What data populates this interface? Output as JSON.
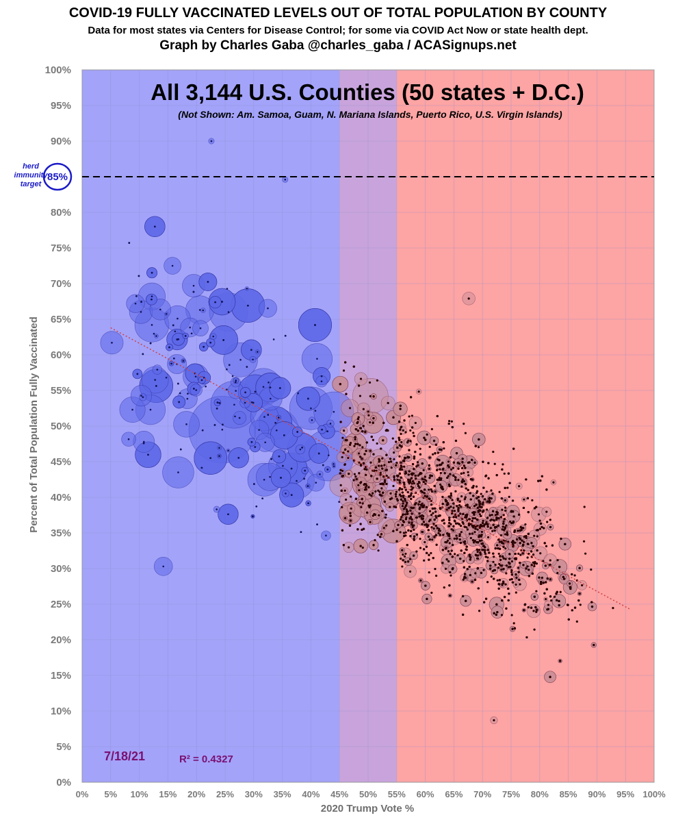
{
  "header": {
    "title": "COVID-19 FULLY VACCINATED LEVELS OUT OF TOTAL POPULATION BY COUNTY",
    "subtitle": "Data for most states via Centers for Disease Control; for some via COVID Act Now or state health dept.",
    "credit": "Graph by Charles Gaba @charles_gaba / ACASignups.net"
  },
  "colors": {
    "blue_zone": "#a3a3fa",
    "purple_zone": "#c9a4dc",
    "red_zone": "#fda4a4",
    "blue_marker": "#5c67e8",
    "red_marker": "#c78c95",
    "dot": "#2a0000",
    "trend": "#d04040",
    "herd_line": "#000000",
    "annotation": "#7a1070"
  },
  "chart_data": {
    "type": "scatter",
    "heading": "All 3,144 U.S. Counties (50 states + D.C.)",
    "note": "(Not Shown: Am. Samoa, Guam, N. Mariana Islands, Puerto Rico, U.S. Virgin Islands)",
    "xlabel": "2020 Trump Vote %",
    "ylabel": "Percent of Total Population Fully Vaccinated",
    "xlim": [
      0,
      100
    ],
    "ylim": [
      0,
      100
    ],
    "x_ticks": [
      "0%",
      "5%",
      "10%",
      "15%",
      "20%",
      "25%",
      "30%",
      "35%",
      "40%",
      "45%",
      "50%",
      "55%",
      "60%",
      "65%",
      "70%",
      "75%",
      "80%",
      "85%",
      "90%",
      "95%",
      "100%"
    ],
    "y_ticks": [
      "0%",
      "5%",
      "10%",
      "15%",
      "20%",
      "25%",
      "30%",
      "35%",
      "40%",
      "45%",
      "50%",
      "55%",
      "60%",
      "65%",
      "70%",
      "75%",
      "80%",
      "85%",
      "90%",
      "95%",
      "100%"
    ],
    "zones": [
      {
        "name": "blue",
        "from": 0,
        "to": 45
      },
      {
        "name": "purple",
        "from": 45,
        "to": 55
      },
      {
        "name": "red",
        "from": 55,
        "to": 100
      }
    ],
    "herd_target": {
      "value": 85,
      "label_lines": [
        "herd",
        "immunity",
        "target"
      ],
      "value_label": "85%"
    },
    "trendline": {
      "x": [
        5,
        96
      ],
      "y": [
        63.8,
        24.2
      ],
      "r_squared": "R² = 0.4327"
    },
    "date": "7/18/21",
    "point_count": 3144,
    "labeled_points": [
      {
        "x": 5.2,
        "y": 61.7,
        "r": 1.6
      },
      {
        "x": 8.8,
        "y": 52.3,
        "r": 1.8
      },
      {
        "x": 10.8,
        "y": 47.8,
        "r": 1.5
      },
      {
        "x": 12.2,
        "y": 68.2,
        "r": 1.9
      },
      {
        "x": 12.2,
        "y": 64.2,
        "r": 2.4
      },
      {
        "x": 14.2,
        "y": 30.3,
        "r": 1.3
      },
      {
        "x": 15.8,
        "y": 72.5,
        "r": 1.2
      },
      {
        "x": 16.8,
        "y": 43.5,
        "r": 2.2
      },
      {
        "x": 19.5,
        "y": 69.7,
        "r": 1.6
      },
      {
        "x": 20.6,
        "y": 66.3,
        "r": 2.0
      },
      {
        "x": 24.5,
        "y": 49.5,
        "r": 4.7
      },
      {
        "x": 25.6,
        "y": 66.0,
        "r": 2.7
      },
      {
        "x": 26.6,
        "y": 53.0,
        "r": 3.3
      },
      {
        "x": 27.7,
        "y": 59.3,
        "r": 2.4
      },
      {
        "x": 31.7,
        "y": 55.5,
        "r": 2.6
      },
      {
        "x": 34.0,
        "y": 49.4,
        "r": 3.1
      },
      {
        "x": 40.0,
        "y": 52.5,
        "r": 3.0
      },
      {
        "x": 43.1,
        "y": 45.9,
        "r": 3.6
      },
      {
        "x": 44.0,
        "y": 52.0,
        "r": 2.8
      },
      {
        "x": 50.4,
        "y": 54.2,
        "r": 2.5
      },
      {
        "x": 37.5,
        "y": 42.3,
        "r": 2.5
      },
      {
        "x": 67.6,
        "y": 67.9,
        "r": 0.9
      },
      {
        "x": 72.0,
        "y": 8.7,
        "r": 0.5
      },
      {
        "x": 22.6,
        "y": 90.0,
        "r": 0.4
      },
      {
        "x": 35.5,
        "y": 84.6,
        "r": 0.4
      }
    ]
  }
}
